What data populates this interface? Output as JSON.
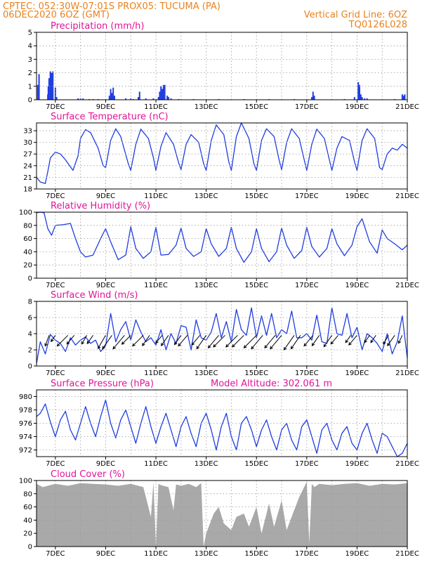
{
  "header": {
    "line1": "CPTEC:    052:30W-07:01S    PROX05: TUCUMA (PA)",
    "line2_left": "06DEC2020 6OZ (GMT)",
    "line2_right": "Vertical Grid Line: 6OZ",
    "line3_right": "TQ0126L028"
  },
  "x_axis": {
    "tick_labels": [
      "7DEC",
      "9DEC",
      "11DEC",
      "13DEC",
      "15DEC",
      "17DEC",
      "19DEC",
      "21DEC"
    ],
    "tick_days": [
      7,
      9,
      11,
      13,
      15,
      17,
      19,
      21
    ],
    "range_days": [
      6.25,
      21.0
    ],
    "vertical_grid_every_days": 1
  },
  "colors": {
    "line": "#1f3de0",
    "bars": "#1f3de0",
    "cloud": "#a9a9a9",
    "title": "#e0149a",
    "header": "#e8821e"
  },
  "chart_data": [
    {
      "id": "precipitation",
      "type": "bar",
      "title": "Precipitation (mm/h)",
      "ylim": [
        0,
        5
      ],
      "yticks": [
        0,
        1,
        2,
        3,
        4,
        5
      ],
      "x": [
        6.3,
        6.35,
        6.7,
        6.72,
        6.75,
        6.8,
        6.85,
        6.9,
        7.0,
        7.05,
        7.9,
        8.0,
        8.1,
        8.35,
        8.5,
        8.7,
        9.15,
        9.2,
        9.25,
        9.3,
        9.35,
        9.8,
        10.0,
        10.1,
        10.3,
        10.35,
        10.6,
        10.9,
        11.1,
        11.15,
        11.2,
        11.25,
        11.3,
        11.35,
        11.45,
        11.5,
        11.6,
        11.9,
        12.5,
        13.5,
        14.5,
        15.5,
        16.5,
        17.2,
        17.25,
        17.3,
        18.5,
        18.9,
        19.05,
        19.1,
        19.15,
        19.2,
        19.3,
        19.4,
        20.5,
        20.8,
        20.85,
        20.9
      ],
      "values": [
        1.1,
        1.9,
        0.4,
        1.0,
        1.6,
        2.1,
        2.0,
        2.1,
        0.9,
        0.2,
        0.1,
        0.1,
        0.1,
        0.05,
        0.05,
        0.05,
        0.3,
        0.8,
        0.5,
        0.9,
        0.3,
        0.1,
        0.1,
        0.05,
        0.2,
        0.6,
        0.1,
        0.1,
        0.2,
        0.6,
        1.0,
        0.8,
        1.1,
        1.1,
        0.3,
        0.2,
        0.1,
        0.05,
        0.05,
        0.05,
        0.05,
        0.05,
        0.05,
        0.2,
        0.6,
        0.3,
        0.05,
        0.2,
        1.3,
        1.1,
        0.4,
        0.2,
        0.1,
        0.1,
        0.05,
        0.4,
        0.3,
        0.4
      ]
    },
    {
      "id": "temperature",
      "type": "line",
      "title": "Surface Temperature (nC)",
      "ylim": [
        18,
        35
      ],
      "yticks": [
        18,
        21,
        24,
        27,
        30,
        33
      ],
      "x": [
        6.25,
        6.4,
        6.6,
        6.7,
        6.8,
        7.0,
        7.2,
        7.4,
        7.7,
        7.9,
        8.0,
        8.2,
        8.4,
        8.7,
        8.9,
        9.0,
        9.2,
        9.4,
        9.6,
        9.9,
        10.0,
        10.2,
        10.4,
        10.7,
        10.9,
        11.0,
        11.2,
        11.4,
        11.7,
        11.9,
        12.0,
        12.2,
        12.4,
        12.7,
        12.9,
        13.0,
        13.2,
        13.4,
        13.7,
        13.9,
        14.0,
        14.2,
        14.4,
        14.7,
        14.9,
        15.0,
        15.2,
        15.4,
        15.7,
        15.9,
        16.0,
        16.2,
        16.4,
        16.7,
        16.9,
        17.0,
        17.2,
        17.4,
        17.7,
        17.9,
        18.0,
        18.2,
        18.4,
        18.7,
        18.9,
        19.0,
        19.2,
        19.4,
        19.7,
        19.9,
        20.0,
        20.2,
        20.4,
        20.6,
        20.8,
        21.0
      ],
      "values": [
        21.0,
        19.8,
        19.4,
        22.5,
        26.0,
        27.5,
        27.0,
        25.5,
        22.8,
        26.5,
        31.0,
        33.3,
        32.5,
        28.5,
        24.0,
        23.5,
        30.5,
        33.5,
        31.5,
        24.5,
        22.8,
        29.5,
        33.4,
        31.0,
        26.0,
        22.8,
        29.0,
        32.5,
        29.5,
        24.8,
        23.0,
        29.5,
        32.0,
        30.0,
        24.5,
        22.8,
        30.5,
        34.5,
        32.0,
        25.0,
        22.8,
        31.5,
        35.0,
        31.0,
        24.5,
        22.8,
        30.5,
        33.5,
        31.5,
        25.5,
        23.0,
        30.0,
        33.5,
        31.0,
        25.5,
        22.8,
        29.5,
        33.4,
        31.0,
        25.5,
        22.8,
        28.5,
        31.5,
        30.5,
        25.0,
        22.8,
        30.5,
        33.5,
        31.0,
        23.5,
        23.0,
        27.0,
        28.5,
        28.0,
        29.5,
        28.5
      ]
    },
    {
      "id": "humidity",
      "type": "line",
      "title": "Relative Humidity (%)",
      "ylim": [
        0,
        100
      ],
      "yticks": [
        0,
        20,
        40,
        60,
        80,
        100
      ],
      "x": [
        6.25,
        6.4,
        6.55,
        6.7,
        6.85,
        7.0,
        7.3,
        7.6,
        7.8,
        8.0,
        8.2,
        8.5,
        8.8,
        9.0,
        9.2,
        9.5,
        9.8,
        10.0,
        10.2,
        10.5,
        10.8,
        11.0,
        11.2,
        11.5,
        11.8,
        12.0,
        12.2,
        12.5,
        12.8,
        13.0,
        13.2,
        13.5,
        13.8,
        14.0,
        14.2,
        14.5,
        14.8,
        15.0,
        15.2,
        15.5,
        15.8,
        16.0,
        16.2,
        16.5,
        16.8,
        17.0,
        17.2,
        17.5,
        17.8,
        18.0,
        18.2,
        18.5,
        18.8,
        19.0,
        19.2,
        19.5,
        19.8,
        20.0,
        20.2,
        20.5,
        20.8,
        21.0
      ],
      "values": [
        99,
        100,
        99,
        75,
        65,
        80,
        81,
        83,
        60,
        40,
        32,
        35,
        60,
        75,
        55,
        28,
        35,
        78,
        45,
        30,
        40,
        77,
        35,
        36,
        50,
        76,
        45,
        33,
        40,
        75,
        52,
        33,
        45,
        77,
        45,
        24,
        40,
        75,
        45,
        25,
        40,
        76,
        50,
        30,
        42,
        77,
        48,
        32,
        45,
        75,
        52,
        34,
        50,
        78,
        90,
        55,
        38,
        73,
        60,
        52,
        43,
        50
      ]
    },
    {
      "id": "wind",
      "type": "line",
      "title": "Surface Wind (m/s)",
      "ylim": [
        0,
        8
      ],
      "yticks": [
        0,
        2,
        4,
        6,
        8
      ],
      "x": [
        6.25,
        6.4,
        6.6,
        6.8,
        7.0,
        7.2,
        7.4,
        7.6,
        7.8,
        8.0,
        8.2,
        8.4,
        8.6,
        8.8,
        9.0,
        9.2,
        9.4,
        9.6,
        9.8,
        10.0,
        10.2,
        10.4,
        10.6,
        10.8,
        11.0,
        11.2,
        11.4,
        11.6,
        11.8,
        12.0,
        12.2,
        12.4,
        12.6,
        12.8,
        13.0,
        13.2,
        13.4,
        13.6,
        13.8,
        14.0,
        14.2,
        14.4,
        14.6,
        14.8,
        15.0,
        15.2,
        15.4,
        15.6,
        15.8,
        16.0,
        16.2,
        16.4,
        16.6,
        16.8,
        17.0,
        17.2,
        17.4,
        17.6,
        17.8,
        18.0,
        18.2,
        18.4,
        18.6,
        18.8,
        19.0,
        19.2,
        19.4,
        19.6,
        19.8,
        20.0,
        20.2,
        20.4,
        20.6,
        20.8,
        21.0
      ],
      "values": [
        0.3,
        3.0,
        1.5,
        3.9,
        3.2,
        2.8,
        1.8,
        3.5,
        2.6,
        3.2,
        3.6,
        2.8,
        3.2,
        1.8,
        2.5,
        6.5,
        3.0,
        4.5,
        5.5,
        3.2,
        5.7,
        4.2,
        3.0,
        3.5,
        2.6,
        4.5,
        2.0,
        4.0,
        2.8,
        5.0,
        4.8,
        2.0,
        5.7,
        3.5,
        3.2,
        4.2,
        6.5,
        3.5,
        5.5,
        3.0,
        7.0,
        4.5,
        3.8,
        7.2,
        3.5,
        6.2,
        3.8,
        6.5,
        3.5,
        4.5,
        4.0,
        6.8,
        3.5,
        3.5,
        4.0,
        3.2,
        6.3,
        3.0,
        2.8,
        7.2,
        4.0,
        3.8,
        6.5,
        3.5,
        4.8,
        2.0,
        4.0,
        3.5,
        2.8,
        1.8,
        4.0,
        1.5,
        3.0,
        6.2,
        1.0
      ],
      "arrows": [
        {
          "x": 6.75,
          "dir": 200,
          "len": 0.9
        },
        {
          "x": 7.0,
          "dir": 215,
          "len": 0.6
        },
        {
          "x": 7.5,
          "dir": 225,
          "len": 1.2
        },
        {
          "x": 7.75,
          "dir": 220,
          "len": 0.9
        },
        {
          "x": 8.25,
          "dir": 210,
          "len": 0.8
        },
        {
          "x": 8.5,
          "dir": 215,
          "len": 0.8
        },
        {
          "x": 9.0,
          "dir": 210,
          "len": 1.2
        },
        {
          "x": 9.25,
          "dir": 215,
          "len": 1.3
        },
        {
          "x": 9.75,
          "dir": 220,
          "len": 1.4
        },
        {
          "x": 10.0,
          "dir": 225,
          "len": 1.0
        },
        {
          "x": 10.5,
          "dir": 225,
          "len": 1.2
        },
        {
          "x": 10.75,
          "dir": 215,
          "len": 1.0
        },
        {
          "x": 11.25,
          "dir": 220,
          "len": 0.8
        },
        {
          "x": 11.5,
          "dir": 215,
          "len": 1.0
        },
        {
          "x": 12.0,
          "dir": 215,
          "len": 0.9
        },
        {
          "x": 12.25,
          "dir": 220,
          "len": 1.1
        },
        {
          "x": 12.75,
          "dir": 220,
          "len": 1.0
        },
        {
          "x": 13.0,
          "dir": 215,
          "len": 1.3
        },
        {
          "x": 13.5,
          "dir": 220,
          "len": 1.3
        },
        {
          "x": 13.75,
          "dir": 225,
          "len": 1.3
        },
        {
          "x": 14.25,
          "dir": 225,
          "len": 1.3
        },
        {
          "x": 14.5,
          "dir": 225,
          "len": 1.3
        },
        {
          "x": 15.0,
          "dir": 225,
          "len": 1.4
        },
        {
          "x": 15.25,
          "dir": 220,
          "len": 1.4
        },
        {
          "x": 15.75,
          "dir": 220,
          "len": 1.3
        },
        {
          "x": 16.0,
          "dir": 220,
          "len": 1.4
        },
        {
          "x": 16.5,
          "dir": 215,
          "len": 1.4
        },
        {
          "x": 16.75,
          "dir": 215,
          "len": 1.3
        },
        {
          "x": 17.25,
          "dir": 220,
          "len": 1.1
        },
        {
          "x": 17.5,
          "dir": 215,
          "len": 1.0
        },
        {
          "x": 18.0,
          "dir": 215,
          "len": 1.1
        },
        {
          "x": 18.25,
          "dir": 220,
          "len": 0.9
        },
        {
          "x": 18.75,
          "dir": 215,
          "len": 0.7
        },
        {
          "x": 19.0,
          "dir": 220,
          "len": 1.0
        },
        {
          "x": 19.5,
          "dir": 215,
          "len": 0.7
        },
        {
          "x": 19.75,
          "dir": 215,
          "len": 0.7
        },
        {
          "x": 20.25,
          "dir": 210,
          "len": 0.8
        },
        {
          "x": 20.5,
          "dir": 215,
          "len": 1.0
        },
        {
          "x": 20.8,
          "dir": 205,
          "len": 0.7
        }
      ]
    },
    {
      "id": "pressure",
      "type": "line",
      "title": "Surface Pressure (hPa)",
      "annotation": "Model Altitude: 302.061 m",
      "ylim": [
        971,
        981
      ],
      "yticks": [
        972,
        974,
        976,
        978,
        980
      ],
      "x": [
        6.25,
        6.4,
        6.6,
        6.8,
        7.0,
        7.2,
        7.4,
        7.6,
        7.8,
        8.0,
        8.2,
        8.4,
        8.6,
        8.8,
        9.0,
        9.2,
        9.4,
        9.6,
        9.8,
        10.0,
        10.2,
        10.4,
        10.6,
        10.8,
        11.0,
        11.2,
        11.4,
        11.6,
        11.8,
        12.0,
        12.2,
        12.4,
        12.6,
        12.8,
        13.0,
        13.2,
        13.4,
        13.6,
        13.8,
        14.0,
        14.2,
        14.4,
        14.6,
        14.8,
        15.0,
        15.2,
        15.4,
        15.6,
        15.8,
        16.0,
        16.2,
        16.4,
        16.6,
        16.8,
        17.0,
        17.2,
        17.4,
        17.6,
        17.8,
        18.0,
        18.2,
        18.4,
        18.6,
        18.8,
        19.0,
        19.2,
        19.4,
        19.6,
        19.8,
        20.0,
        20.2,
        20.4,
        20.6,
        20.8,
        21.0
      ],
      "values": [
        977.0,
        977.5,
        978.9,
        976.2,
        974.0,
        976.5,
        977.8,
        975.0,
        973.5,
        976.0,
        978.5,
        976.0,
        974.0,
        977.0,
        979.5,
        976.0,
        973.8,
        976.5,
        978.0,
        975.5,
        973.0,
        976.0,
        978.5,
        975.5,
        973.0,
        975.5,
        977.5,
        975.0,
        972.5,
        975.5,
        977.0,
        974.5,
        972.5,
        976.0,
        977.5,
        975.0,
        972.0,
        975.5,
        977.5,
        974.0,
        972.0,
        976.0,
        977.0,
        975.0,
        972.5,
        975.0,
        976.5,
        974.0,
        972.0,
        975.0,
        976.0,
        973.5,
        972.0,
        975.5,
        976.5,
        974.0,
        971.5,
        975.0,
        976.0,
        973.5,
        972.0,
        974.5,
        975.5,
        973.0,
        972.0,
        974.5,
        976.0,
        973.5,
        971.5,
        974.5,
        974.0,
        972.5,
        971.0,
        971.5,
        973.0
      ]
    },
    {
      "id": "cloud",
      "type": "area",
      "title": "Cloud Cover (%)",
      "ylim": [
        0,
        100
      ],
      "yticks": [
        0,
        20,
        40,
        60,
        80,
        100
      ],
      "x": [
        6.25,
        6.5,
        7.0,
        7.5,
        8.0,
        8.5,
        9.0,
        9.5,
        10.0,
        10.5,
        10.8,
        10.9,
        11.0,
        11.1,
        11.2,
        11.5,
        11.7,
        11.8,
        12.0,
        12.3,
        12.6,
        12.8,
        12.9,
        13.0,
        13.3,
        13.5,
        13.7,
        14.0,
        14.2,
        14.5,
        14.7,
        15.0,
        15.2,
        15.5,
        15.7,
        16.0,
        16.2,
        16.5,
        16.7,
        17.0,
        17.1,
        17.2,
        17.3,
        17.5,
        18.0,
        18.5,
        19.0,
        19.5,
        20.0,
        20.5,
        21.0
      ],
      "values": [
        95,
        90,
        95,
        92,
        96,
        95,
        94,
        92,
        95,
        90,
        45,
        98,
        0,
        95,
        93,
        90,
        55,
        94,
        92,
        95,
        90,
        96,
        0,
        20,
        50,
        60,
        35,
        25,
        45,
        50,
        30,
        60,
        20,
        65,
        30,
        70,
        25,
        55,
        75,
        98,
        5,
        95,
        90,
        95,
        93,
        95,
        96,
        92,
        95,
        94,
        96
      ]
    }
  ]
}
